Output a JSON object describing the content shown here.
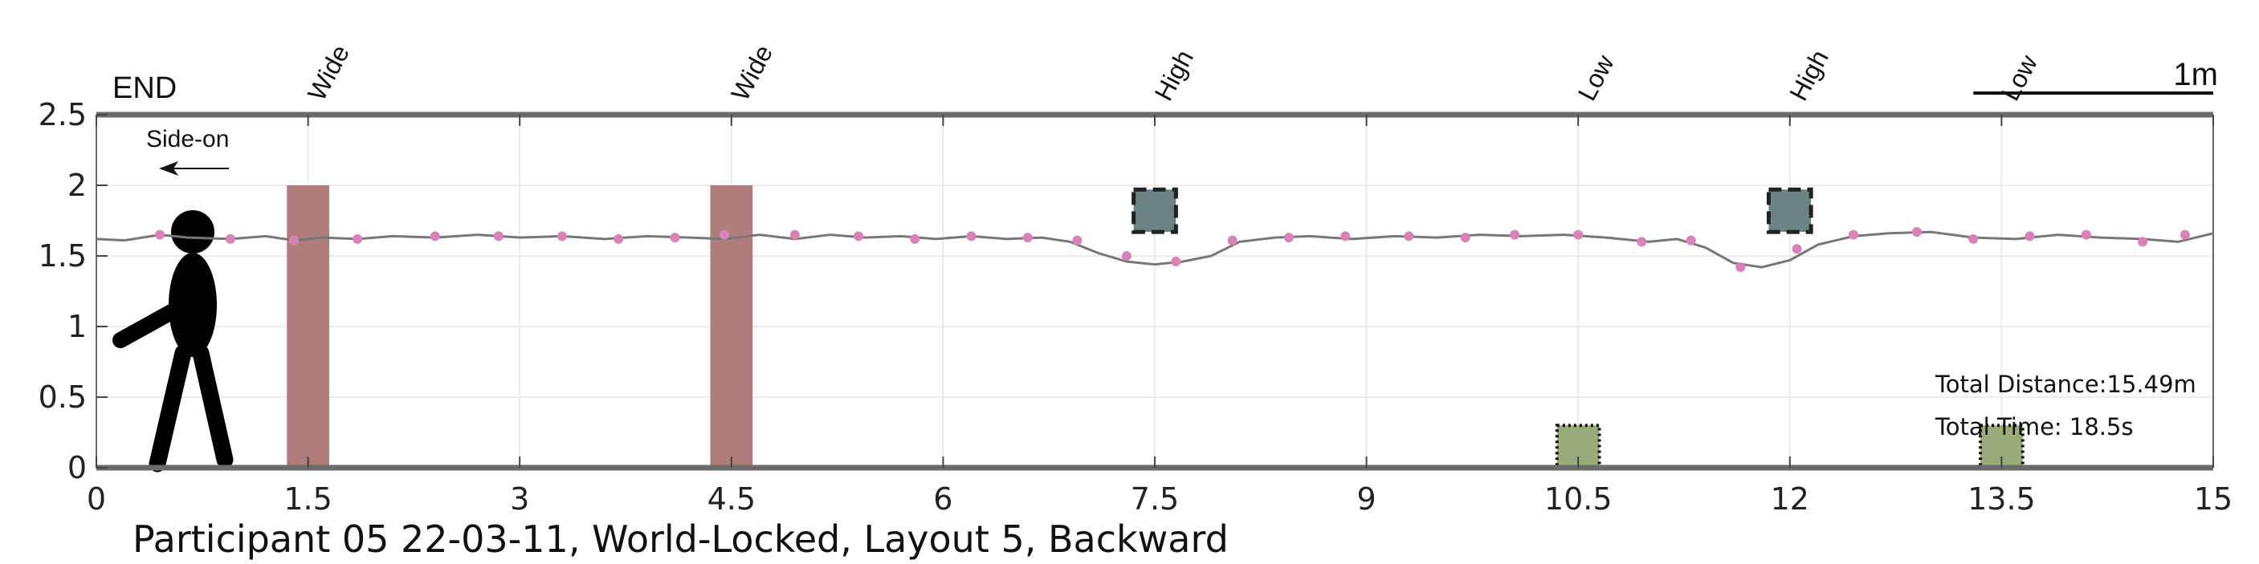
{
  "chart_data": {
    "type": "line",
    "title": "Participant 05 22-03-11, World-Locked, Layout 5, Backward",
    "xlabel": "",
    "ylabel": "",
    "xlim": [
      0,
      15
    ],
    "ylim": [
      0,
      2.5
    ],
    "x_ticks": [
      "0",
      "1.5",
      "3",
      "4.5",
      "6",
      "7.5",
      "9",
      "10.5",
      "12",
      "13.5",
      "15"
    ],
    "y_ticks": [
      "0",
      "0.5",
      "1",
      "1.5",
      "2",
      "2.5"
    ],
    "grid": true,
    "end_label": "END",
    "view_label": "Side-on",
    "scale_bar_label": "1m",
    "scale_bar_length": 1,
    "total_distance_text": "Total Distance:15.49m",
    "total_time_text": "Total Time: 18.5s",
    "obstacle_labels": [
      {
        "x": 1.5,
        "text": "Wide"
      },
      {
        "x": 4.5,
        "text": "Wide"
      },
      {
        "x": 7.5,
        "text": "High"
      },
      {
        "x": 10.5,
        "text": "Low"
      },
      {
        "x": 12,
        "text": "High"
      },
      {
        "x": 13.5,
        "text": "Low"
      }
    ],
    "obstacles": [
      {
        "type": "wide",
        "x": 1.5,
        "width": 0.3,
        "y0": 0,
        "y1": 2.0,
        "color": "#b07d7d"
      },
      {
        "type": "wide",
        "x": 4.5,
        "width": 0.3,
        "y0": 0,
        "y1": 2.0,
        "color": "#b07d7d"
      },
      {
        "type": "high",
        "x": 7.5,
        "width": 0.3,
        "y0": 1.67,
        "y1": 1.97,
        "color": "#6a8383"
      },
      {
        "type": "low",
        "x": 10.5,
        "width": 0.3,
        "y0": 0,
        "y1": 0.3,
        "color": "#9aab79"
      },
      {
        "type": "high",
        "x": 12,
        "width": 0.3,
        "y0": 1.67,
        "y1": 1.97,
        "color": "#6a8383"
      },
      {
        "type": "low",
        "x": 13.5,
        "width": 0.3,
        "y0": 0,
        "y1": 0.3,
        "color": "#9aab79"
      }
    ],
    "head_trajectory": {
      "name": "",
      "color": "#777777",
      "x": [
        0,
        0.2,
        0.45,
        0.65,
        0.95,
        1.2,
        1.4,
        1.6,
        1.85,
        2.1,
        2.4,
        2.7,
        3.0,
        3.3,
        3.6,
        3.9,
        4.2,
        4.45,
        4.7,
        4.95,
        5.2,
        5.45,
        5.7,
        5.95,
        6.2,
        6.45,
        6.7,
        6.9,
        7.1,
        7.3,
        7.5,
        7.7,
        7.9,
        8.1,
        8.35,
        8.6,
        8.9,
        9.2,
        9.5,
        9.8,
        10.1,
        10.4,
        10.7,
        11.0,
        11.2,
        11.4,
        11.6,
        11.8,
        12.0,
        12.2,
        12.45,
        12.7,
        13.0,
        13.3,
        13.6,
        13.9,
        14.2,
        14.5,
        14.75,
        15.0
      ],
      "y": [
        1.62,
        1.61,
        1.65,
        1.63,
        1.62,
        1.64,
        1.61,
        1.63,
        1.62,
        1.64,
        1.63,
        1.65,
        1.63,
        1.64,
        1.62,
        1.64,
        1.63,
        1.62,
        1.65,
        1.62,
        1.65,
        1.63,
        1.64,
        1.62,
        1.64,
        1.62,
        1.63,
        1.6,
        1.52,
        1.46,
        1.44,
        1.46,
        1.5,
        1.6,
        1.63,
        1.64,
        1.62,
        1.64,
        1.63,
        1.65,
        1.64,
        1.65,
        1.63,
        1.6,
        1.62,
        1.56,
        1.45,
        1.42,
        1.47,
        1.58,
        1.64,
        1.66,
        1.67,
        1.63,
        1.62,
        1.65,
        1.63,
        1.62,
        1.6,
        1.66
      ]
    },
    "markers": {
      "color": "#d982b8",
      "x": [
        0.45,
        0.95,
        1.4,
        1.85,
        2.4,
        2.85,
        3.3,
        3.7,
        4.1,
        4.45,
        4.95,
        5.4,
        5.8,
        6.2,
        6.6,
        6.95,
        7.3,
        7.65,
        8.05,
        8.45,
        8.85,
        9.3,
        9.7,
        10.05,
        10.5,
        10.95,
        11.3,
        11.65,
        12.05,
        12.45,
        12.9,
        13.3,
        13.7,
        14.1,
        14.5,
        14.8
      ],
      "y": [
        1.65,
        1.62,
        1.61,
        1.62,
        1.64,
        1.64,
        1.64,
        1.62,
        1.63,
        1.65,
        1.65,
        1.64,
        1.62,
        1.64,
        1.63,
        1.61,
        1.5,
        1.46,
        1.61,
        1.63,
        1.64,
        1.64,
        1.63,
        1.65,
        1.65,
        1.6,
        1.61,
        1.42,
        1.55,
        1.65,
        1.67,
        1.62,
        1.64,
        1.65,
        1.6,
        1.65
      ]
    }
  }
}
